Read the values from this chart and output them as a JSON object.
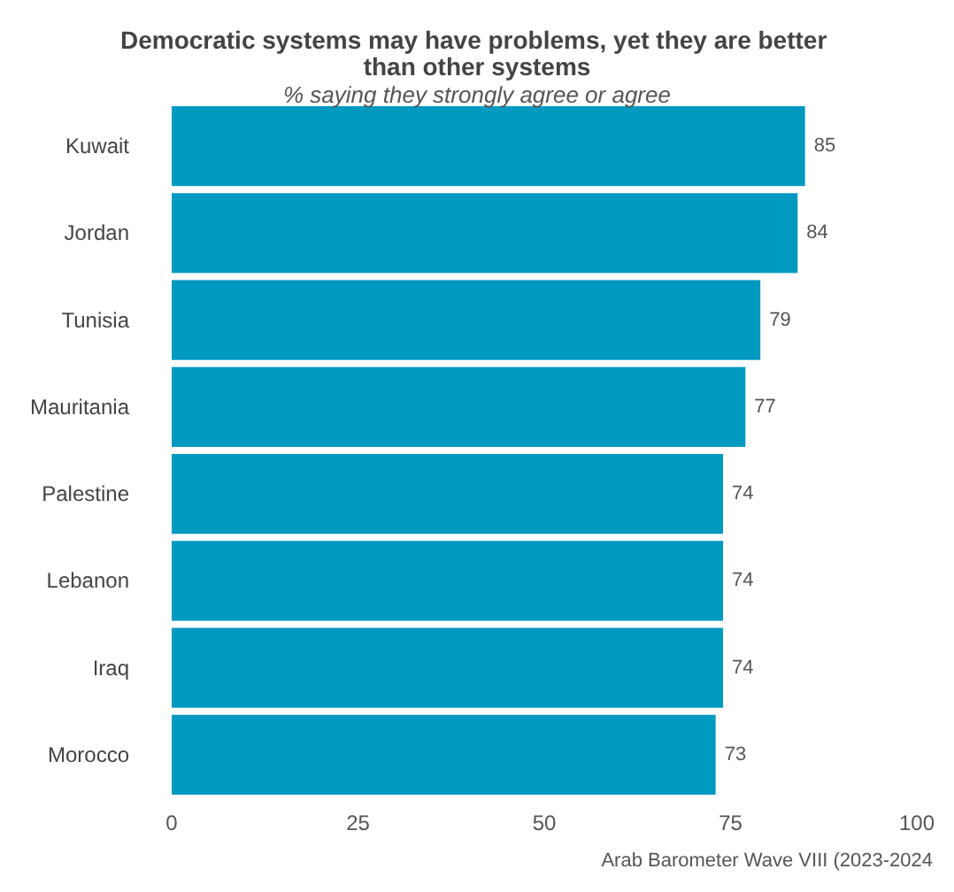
{
  "chart_data": {
    "type": "bar",
    "orientation": "horizontal",
    "title": "Democratic systems may have problems, yet they are better than other systems",
    "subtitle": "% saying they strongly agree or agree",
    "categories": [
      "Kuwait",
      "Jordan",
      "Tunisia",
      "Mauritania",
      "Palestine",
      "Lebanon",
      "Iraq",
      "Morocco"
    ],
    "values": [
      85,
      84,
      79,
      77,
      74,
      74,
      74,
      73
    ],
    "color": "#0099bf",
    "data_labels": true,
    "xlim": [
      0,
      100
    ],
    "xticks": [
      0,
      25,
      50,
      75,
      100
    ],
    "grid": false,
    "annotations": [
      "Arab Barometer Wave VIII (2023-2024"
    ]
  }
}
